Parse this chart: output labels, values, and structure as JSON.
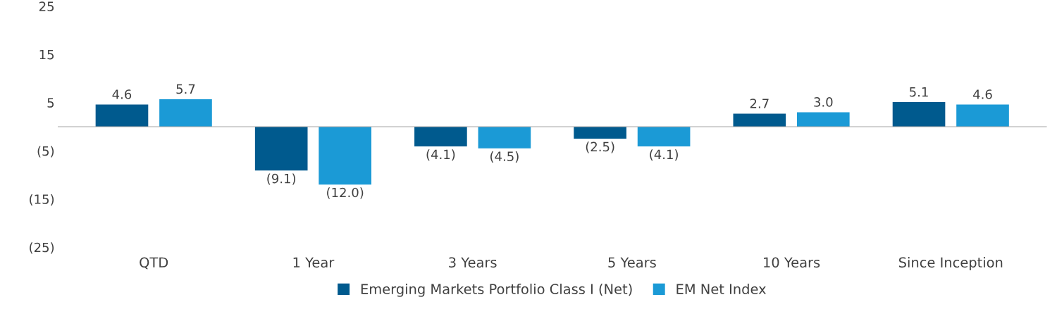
{
  "chart_data": {
    "type": "bar",
    "categories": [
      "QTD",
      "1 Year",
      "3 Years",
      "5 Years",
      "10 Years",
      "Since Inception"
    ],
    "series": [
      {
        "name": "Emerging Markets Portfolio Class I (Net)",
        "color": "#005a8e",
        "values": [
          4.6,
          -9.1,
          -4.1,
          -2.5,
          2.7,
          5.1
        ],
        "value_labels": [
          "4.6",
          "(9.1)",
          "(4.1)",
          "(2.5)",
          "2.7",
          "5.1"
        ]
      },
      {
        "name": "EM Net Index",
        "color": "#1b9ad6",
        "values": [
          5.7,
          -12.0,
          -4.5,
          -4.1,
          3.0,
          4.6
        ],
        "value_labels": [
          "5.7",
          "(12.0)",
          "(4.5)",
          "(4.1)",
          "3.0",
          "4.6"
        ]
      }
    ],
    "ylim": [
      -25,
      25
    ],
    "yticks": [
      {
        "value": -25,
        "label": "(25)"
      },
      {
        "value": -15,
        "label": "(15)"
      },
      {
        "value": -5,
        "label": "(5)"
      },
      5,
      15,
      25
    ],
    "grid": false,
    "legend": "bottom"
  }
}
